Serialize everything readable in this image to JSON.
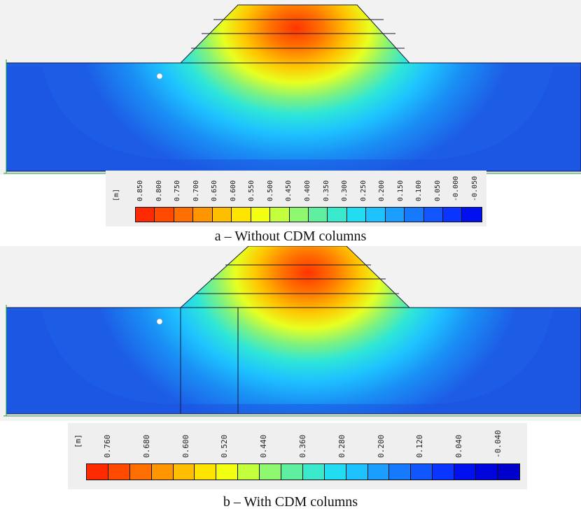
{
  "figure": {
    "panels": [
      {
        "id": "a",
        "caption": "a – Without CDM columns",
        "legend": {
          "unit": "[m]",
          "ticks": [
            "0.850",
            "0.800",
            "0.750",
            "0.700",
            "0.650",
            "0.600",
            "0.550",
            "0.500",
            "0.450",
            "0.400",
            "0.350",
            "0.300",
            "0.250",
            "0.200",
            "0.150",
            "0.100",
            "0.050",
            "-0.000",
            "-0.050"
          ],
          "colors": [
            "#ff2a00",
            "#ff4a00",
            "#ff6e00",
            "#ff9600",
            "#ffbe00",
            "#ffe400",
            "#f2ff10",
            "#c4ff3e",
            "#8ef870",
            "#5ef0a0",
            "#3ae8cc",
            "#22dcf2",
            "#1ec2ff",
            "#1a9eff",
            "#167aff",
            "#1256ff",
            "#0a34ff",
            "#0010ee"
          ]
        },
        "has_cdm_columns": false
      },
      {
        "id": "b",
        "caption": "b – With CDM columns",
        "legend": {
          "unit": "[m]",
          "ticks": [
            "0.760",
            "0.680",
            "0.600",
            "0.520",
            "0.440",
            "0.360",
            "0.280",
            "0.200",
            "0.120",
            "0.040",
            "-0.040"
          ],
          "colors": [
            "#ff2a00",
            "#ff4a00",
            "#ff6e00",
            "#ff9600",
            "#ffbe00",
            "#ffe400",
            "#f2ff10",
            "#c4ff3e",
            "#8ef870",
            "#5ef0a0",
            "#3ae8cc",
            "#22dcf2",
            "#1ec2ff",
            "#1a9eff",
            "#167aff",
            "#1256ff",
            "#0a34ff",
            "#0010ee",
            "#0004dd",
            "#0000cc"
          ]
        },
        "has_cdm_columns": true
      }
    ],
    "colors": {
      "background": "#f2f2f2",
      "soil_far_field": "#1d5de6",
      "fixity_marks": "#1a9a3a",
      "outline": "#1a1a3a"
    }
  }
}
